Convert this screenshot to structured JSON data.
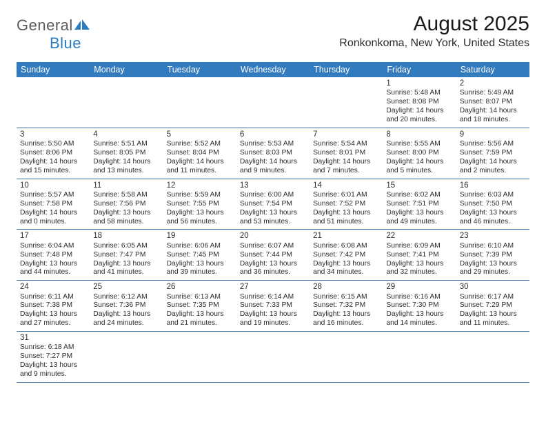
{
  "logo": {
    "general": "General",
    "blue": "Blue"
  },
  "title": "August 2025",
  "location": "Ronkonkoma, New York, United States",
  "colors": {
    "header_bg": "#327bbf",
    "header_text": "#ffffff",
    "row_border": "#3a6fa5",
    "logo_blue": "#2a7cc0",
    "logo_gray": "#5b5b5b"
  },
  "day_headers": [
    "Sunday",
    "Monday",
    "Tuesday",
    "Wednesday",
    "Thursday",
    "Friday",
    "Saturday"
  ],
  "weeks": [
    [
      null,
      null,
      null,
      null,
      null,
      {
        "n": "1",
        "sr": "Sunrise: 5:48 AM",
        "ss": "Sunset: 8:08 PM",
        "dl": "Daylight: 14 hours and 20 minutes."
      },
      {
        "n": "2",
        "sr": "Sunrise: 5:49 AM",
        "ss": "Sunset: 8:07 PM",
        "dl": "Daylight: 14 hours and 18 minutes."
      }
    ],
    [
      {
        "n": "3",
        "sr": "Sunrise: 5:50 AM",
        "ss": "Sunset: 8:06 PM",
        "dl": "Daylight: 14 hours and 15 minutes."
      },
      {
        "n": "4",
        "sr": "Sunrise: 5:51 AM",
        "ss": "Sunset: 8:05 PM",
        "dl": "Daylight: 14 hours and 13 minutes."
      },
      {
        "n": "5",
        "sr": "Sunrise: 5:52 AM",
        "ss": "Sunset: 8:04 PM",
        "dl": "Daylight: 14 hours and 11 minutes."
      },
      {
        "n": "6",
        "sr": "Sunrise: 5:53 AM",
        "ss": "Sunset: 8:03 PM",
        "dl": "Daylight: 14 hours and 9 minutes."
      },
      {
        "n": "7",
        "sr": "Sunrise: 5:54 AM",
        "ss": "Sunset: 8:01 PM",
        "dl": "Daylight: 14 hours and 7 minutes."
      },
      {
        "n": "8",
        "sr": "Sunrise: 5:55 AM",
        "ss": "Sunset: 8:00 PM",
        "dl": "Daylight: 14 hours and 5 minutes."
      },
      {
        "n": "9",
        "sr": "Sunrise: 5:56 AM",
        "ss": "Sunset: 7:59 PM",
        "dl": "Daylight: 14 hours and 2 minutes."
      }
    ],
    [
      {
        "n": "10",
        "sr": "Sunrise: 5:57 AM",
        "ss": "Sunset: 7:58 PM",
        "dl": "Daylight: 14 hours and 0 minutes."
      },
      {
        "n": "11",
        "sr": "Sunrise: 5:58 AM",
        "ss": "Sunset: 7:56 PM",
        "dl": "Daylight: 13 hours and 58 minutes."
      },
      {
        "n": "12",
        "sr": "Sunrise: 5:59 AM",
        "ss": "Sunset: 7:55 PM",
        "dl": "Daylight: 13 hours and 56 minutes."
      },
      {
        "n": "13",
        "sr": "Sunrise: 6:00 AM",
        "ss": "Sunset: 7:54 PM",
        "dl": "Daylight: 13 hours and 53 minutes."
      },
      {
        "n": "14",
        "sr": "Sunrise: 6:01 AM",
        "ss": "Sunset: 7:52 PM",
        "dl": "Daylight: 13 hours and 51 minutes."
      },
      {
        "n": "15",
        "sr": "Sunrise: 6:02 AM",
        "ss": "Sunset: 7:51 PM",
        "dl": "Daylight: 13 hours and 49 minutes."
      },
      {
        "n": "16",
        "sr": "Sunrise: 6:03 AM",
        "ss": "Sunset: 7:50 PM",
        "dl": "Daylight: 13 hours and 46 minutes."
      }
    ],
    [
      {
        "n": "17",
        "sr": "Sunrise: 6:04 AM",
        "ss": "Sunset: 7:48 PM",
        "dl": "Daylight: 13 hours and 44 minutes."
      },
      {
        "n": "18",
        "sr": "Sunrise: 6:05 AM",
        "ss": "Sunset: 7:47 PM",
        "dl": "Daylight: 13 hours and 41 minutes."
      },
      {
        "n": "19",
        "sr": "Sunrise: 6:06 AM",
        "ss": "Sunset: 7:45 PM",
        "dl": "Daylight: 13 hours and 39 minutes."
      },
      {
        "n": "20",
        "sr": "Sunrise: 6:07 AM",
        "ss": "Sunset: 7:44 PM",
        "dl": "Daylight: 13 hours and 36 minutes."
      },
      {
        "n": "21",
        "sr": "Sunrise: 6:08 AM",
        "ss": "Sunset: 7:42 PM",
        "dl": "Daylight: 13 hours and 34 minutes."
      },
      {
        "n": "22",
        "sr": "Sunrise: 6:09 AM",
        "ss": "Sunset: 7:41 PM",
        "dl": "Daylight: 13 hours and 32 minutes."
      },
      {
        "n": "23",
        "sr": "Sunrise: 6:10 AM",
        "ss": "Sunset: 7:39 PM",
        "dl": "Daylight: 13 hours and 29 minutes."
      }
    ],
    [
      {
        "n": "24",
        "sr": "Sunrise: 6:11 AM",
        "ss": "Sunset: 7:38 PM",
        "dl": "Daylight: 13 hours and 27 minutes."
      },
      {
        "n": "25",
        "sr": "Sunrise: 6:12 AM",
        "ss": "Sunset: 7:36 PM",
        "dl": "Daylight: 13 hours and 24 minutes."
      },
      {
        "n": "26",
        "sr": "Sunrise: 6:13 AM",
        "ss": "Sunset: 7:35 PM",
        "dl": "Daylight: 13 hours and 21 minutes."
      },
      {
        "n": "27",
        "sr": "Sunrise: 6:14 AM",
        "ss": "Sunset: 7:33 PM",
        "dl": "Daylight: 13 hours and 19 minutes."
      },
      {
        "n": "28",
        "sr": "Sunrise: 6:15 AM",
        "ss": "Sunset: 7:32 PM",
        "dl": "Daylight: 13 hours and 16 minutes."
      },
      {
        "n": "29",
        "sr": "Sunrise: 6:16 AM",
        "ss": "Sunset: 7:30 PM",
        "dl": "Daylight: 13 hours and 14 minutes."
      },
      {
        "n": "30",
        "sr": "Sunrise: 6:17 AM",
        "ss": "Sunset: 7:29 PM",
        "dl": "Daylight: 13 hours and 11 minutes."
      }
    ],
    [
      {
        "n": "31",
        "sr": "Sunrise: 6:18 AM",
        "ss": "Sunset: 7:27 PM",
        "dl": "Daylight: 13 hours and 9 minutes."
      },
      null,
      null,
      null,
      null,
      null,
      null
    ]
  ]
}
